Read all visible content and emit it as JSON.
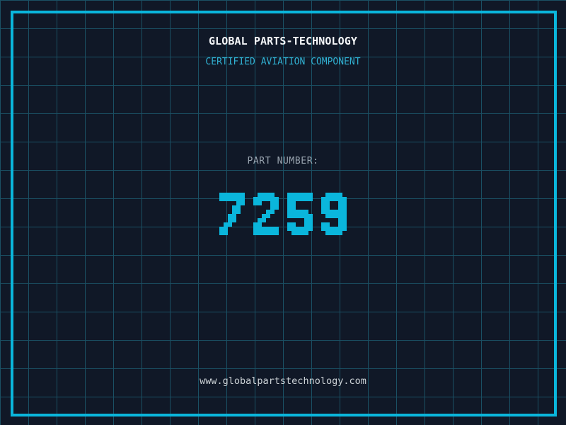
{
  "brand": {
    "title": "GLOBAL PARTS-TECHNOLOGY",
    "subtitle": "CERTIFIED AVIATION COMPONENT"
  },
  "part": {
    "label": "PART NUMBER:",
    "number": "7259"
  },
  "footer": {
    "website": "www.globalpartstechnology.com"
  },
  "colors": {
    "background": "#101827",
    "grid_line": "#1a5064",
    "accent_cyan": "#0ab6dc",
    "subtitle_cyan": "#31b2d4",
    "label_gray": "#9aa5b0",
    "title_white": "#f4f6f8",
    "url_gray": "#ccd2d6"
  }
}
